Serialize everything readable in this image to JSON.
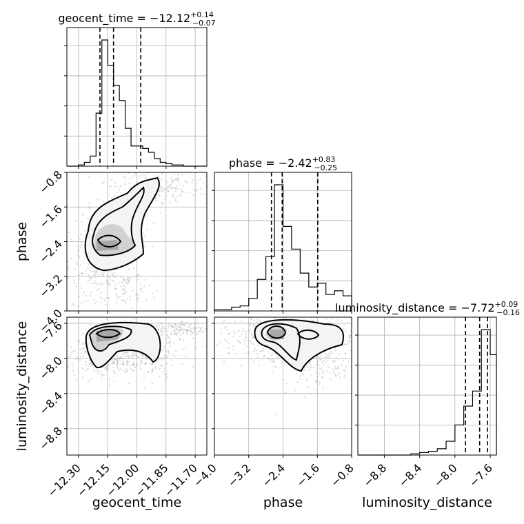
{
  "chart_data": {
    "type": "corner",
    "parameters": [
      "geocent_time",
      "phase",
      "luminosity_distance"
    ],
    "titles": [
      {
        "param": "geocent_time",
        "text": "geocent_time = −12.12",
        "sup": "+0.14",
        "sub": "−0.07",
        "median": -12.12,
        "plus": 0.14,
        "minus": 0.07
      },
      {
        "param": "phase",
        "text": "phase = −2.42",
        "sup": "+0.83",
        "sub": "−0.25",
        "median": -2.42,
        "plus": 0.83,
        "minus": 0.25
      },
      {
        "param": "luminosity_distance",
        "text": "luminosity_distance = −7.72",
        "sup": "+0.09",
        "sub": "−0.16",
        "median": -7.72,
        "plus": 0.09,
        "minus": 0.16
      }
    ],
    "axes": {
      "geocent_time": {
        "range": [
          -12.36,
          -11.64
        ],
        "ticks": [
          -12.3,
          -12.15,
          -12.0,
          -11.85,
          -11.7
        ],
        "tick_labels": [
          "−12.30",
          "−12.15",
          "−12.00",
          "−11.85",
          "−11.70"
        ],
        "label": "geocent_time"
      },
      "phase": {
        "range": [
          -4.0,
          -0.8
        ],
        "ticks": [
          -4.0,
          -3.2,
          -2.4,
          -1.6,
          -0.8
        ],
        "tick_labels": [
          "−4.0",
          "−3.2",
          "−2.4",
          "−1.6",
          "−0.8"
        ],
        "label": "phase"
      },
      "luminosity_distance": {
        "range": [
          -9.1,
          -7.53
        ],
        "ticks": [
          -8.8,
          -8.4,
          -8.0,
          -7.6
        ],
        "tick_labels": [
          "−8.8",
          "−8.4",
          "−8.0",
          "−7.6"
        ],
        "label": "luminosity_distance"
      }
    },
    "quantile_lines": {
      "geocent_time": [
        -12.19,
        -12.12,
        -11.98
      ],
      "phase": [
        -2.67,
        -2.42,
        -1.59
      ],
      "luminosity_distance": [
        -7.88,
        -7.72,
        -7.63
      ]
    },
    "histograms": {
      "geocent_time": {
        "edges": [
          -12.36,
          -12.33,
          -12.3,
          -12.27,
          -12.24,
          -12.21,
          -12.18,
          -12.15,
          -12.12,
          -12.09,
          -12.06,
          -12.03,
          -12.0,
          -11.97,
          -11.94,
          -11.91,
          -11.88,
          -11.85,
          -11.82,
          -11.79,
          -11.76,
          -11.73,
          -11.7,
          -11.67,
          -11.64
        ],
        "counts": [
          0,
          0,
          1,
          3,
          8,
          42,
          100,
          80,
          64,
          52,
          30,
          16,
          16,
          14,
          11,
          6,
          3,
          2,
          1,
          1,
          0,
          0,
          0,
          0
        ]
      },
      "phase": {
        "edges": [
          -4.0,
          -3.8,
          -3.6,
          -3.4,
          -3.2,
          -3.0,
          -2.8,
          -2.6,
          -2.4,
          -2.2,
          -2.0,
          -1.8,
          -1.6,
          -1.4,
          -1.2,
          -1.0,
          -0.8
        ],
        "counts": [
          1,
          1,
          3,
          4,
          10,
          25,
          43,
          100,
          67,
          49,
          30,
          19,
          22,
          13,
          16,
          12
        ]
      },
      "luminosity_distance": {
        "edges": [
          -9.1,
          -9.0,
          -8.9,
          -8.8,
          -8.7,
          -8.6,
          -8.5,
          -8.4,
          -8.3,
          -8.2,
          -8.1,
          -8.0,
          -7.9,
          -7.8,
          -7.7,
          -7.6,
          -7.53
        ],
        "counts": [
          0,
          0,
          0,
          0,
          0,
          0,
          1,
          2,
          3,
          5,
          11,
          24,
          39,
          51,
          100,
          80
        ]
      }
    },
    "levels": [
      "39%",
      "86%",
      "99%"
    ],
    "grid": true
  }
}
